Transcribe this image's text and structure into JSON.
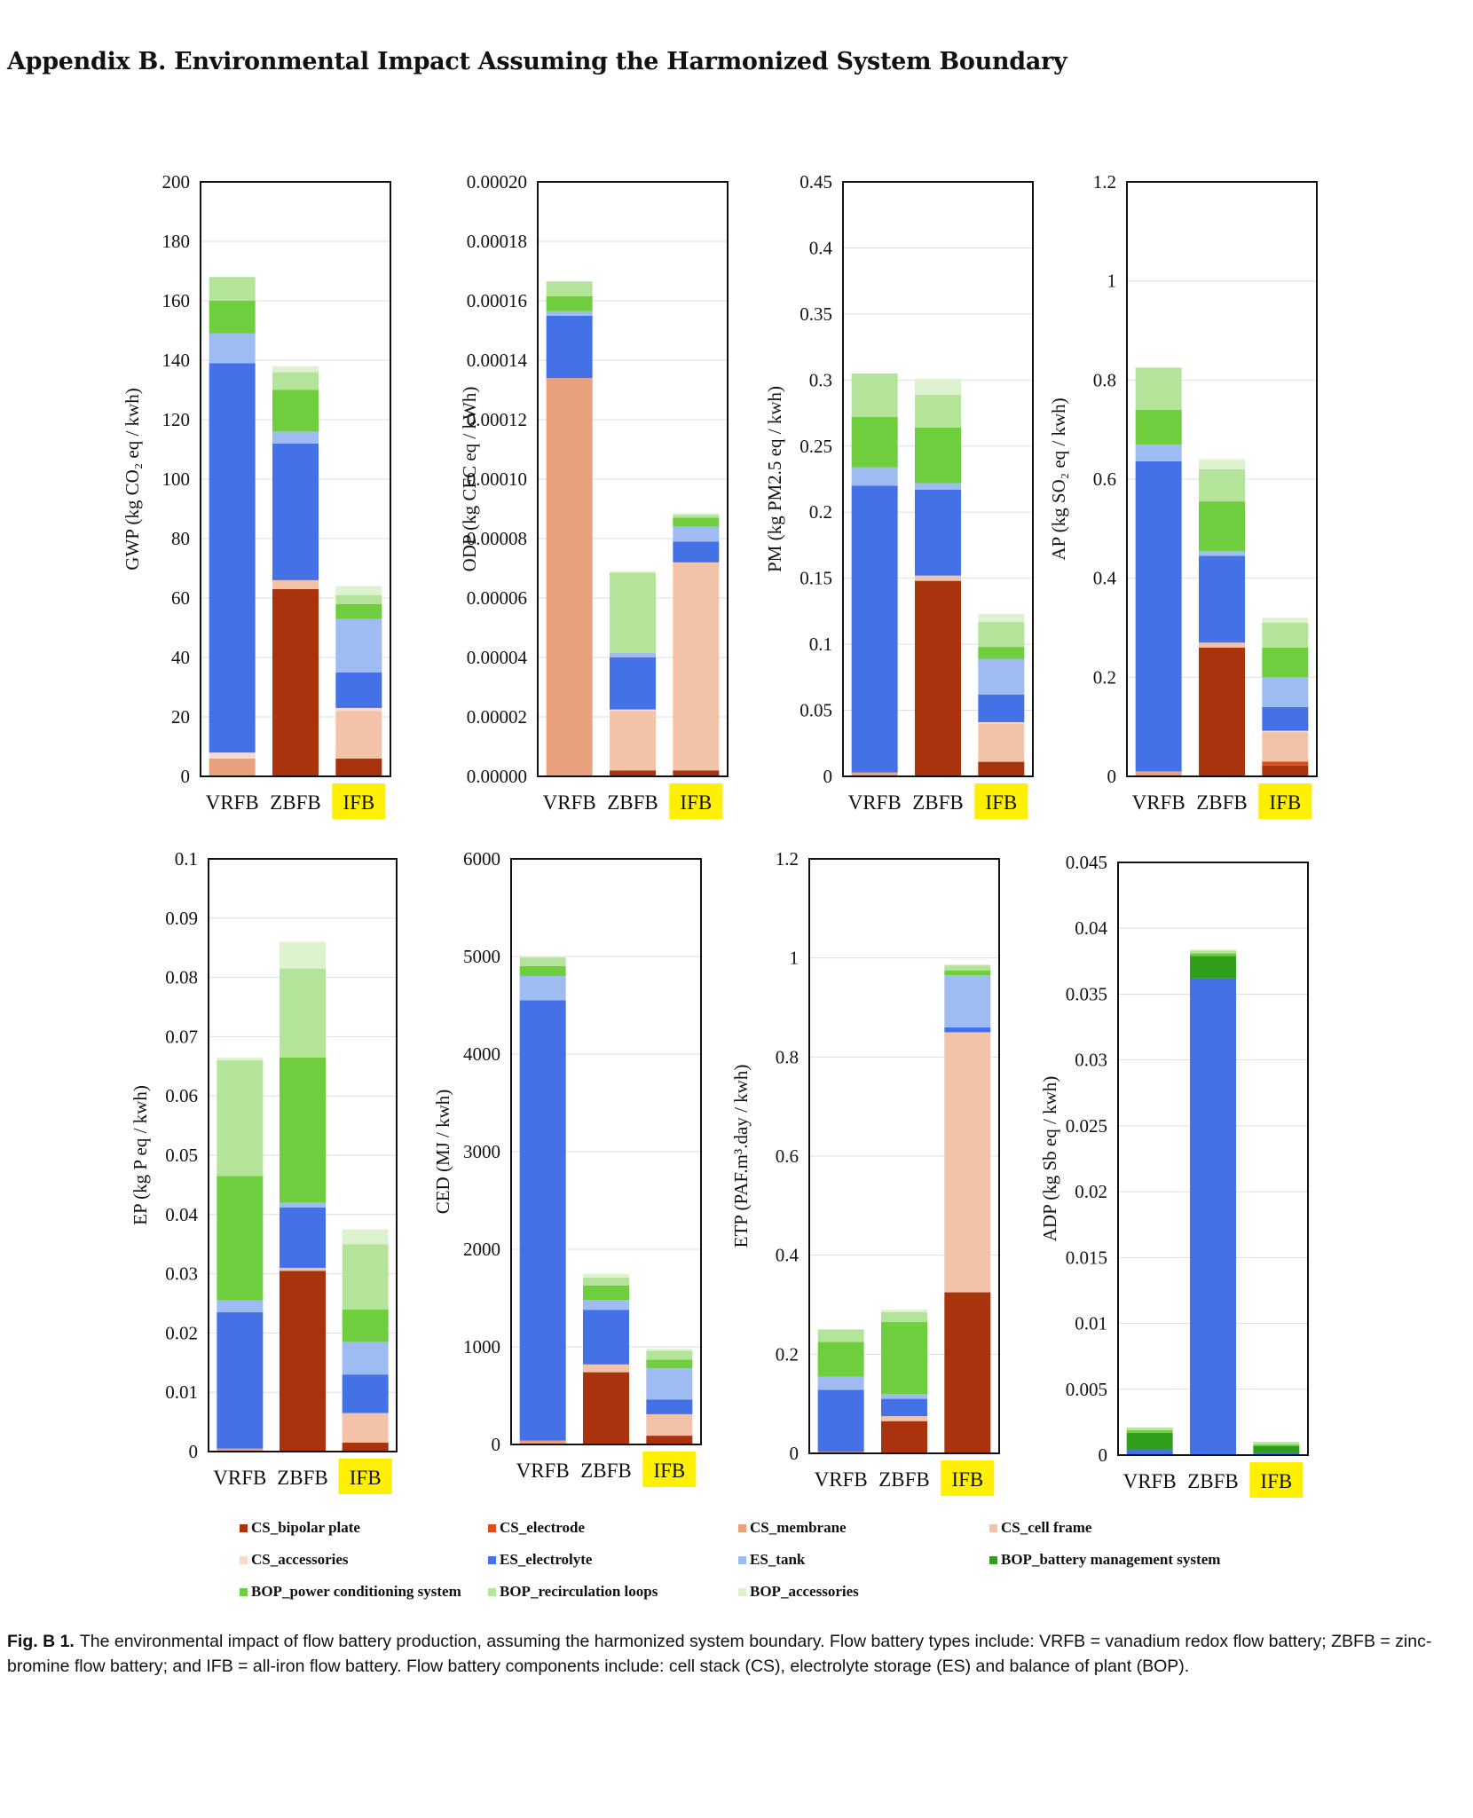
{
  "page": {
    "title": "Appendix B.  Environmental Impact Assuming the Harmonized System Boundary",
    "caption_label": "Fig. B 1.",
    "caption_text": "The environmental impact of flow battery production, assuming the harmonized system boundary. Flow battery types include: VRFB = vanadium redox flow battery; ZBFB = zinc-bromine flow battery; and IFB = all-iron flow battery. Flow battery components include: cell stack (CS), electrolyte storage (ES) and balance of plant (BOP)."
  },
  "legend": [
    {
      "name": "CS_bipolar plate",
      "color": "#a8330d"
    },
    {
      "name": "CS_electrode",
      "color": "#d8501c"
    },
    {
      "name": "CS_membrane",
      "color": "#e9a07c"
    },
    {
      "name": "CS_cell frame",
      "color": "#f2c3a8"
    },
    {
      "name": "CS_accessories",
      "color": "#f7d9cd"
    },
    {
      "name": "ES_electrolyte",
      "color": "#4472e6"
    },
    {
      "name": "ES_tank",
      "color": "#9ebcf2"
    },
    {
      "name": "BOP_battery management system",
      "color": "#2f9e1a"
    },
    {
      "name": "BOP_power conditioning system",
      "color": "#6fce3e"
    },
    {
      "name": "BOP_recirculation loops",
      "color": "#b4e49a"
    },
    {
      "name": "BOP_accessories",
      "color": "#ddf2cf"
    }
  ],
  "highlight_color": "#ffef00",
  "chart_data": [
    {
      "type": "bar",
      "stacked": true,
      "ylabel": "GWP (kg CO₂ eq / kwh)",
      "ylim": [
        0,
        200
      ],
      "ytick_step": 20,
      "yticks": [
        "0",
        "20",
        "40",
        "60",
        "80",
        "100",
        "120",
        "140",
        "160",
        "180",
        "200"
      ],
      "categories": [
        "VRFB",
        "ZBFB",
        "IFB"
      ],
      "highlight_category": "IFB",
      "series": [
        {
          "name": "CS_bipolar plate",
          "values": [
            0,
            63,
            6
          ]
        },
        {
          "name": "CS_electrode",
          "values": [
            0,
            0,
            0
          ]
        },
        {
          "name": "CS_membrane",
          "values": [
            6,
            0,
            0
          ]
        },
        {
          "name": "CS_cell frame",
          "values": [
            0,
            3,
            16
          ]
        },
        {
          "name": "CS_accessories",
          "values": [
            2,
            0,
            1
          ]
        },
        {
          "name": "ES_electrolyte",
          "values": [
            131,
            46,
            12
          ]
        },
        {
          "name": "ES_tank",
          "values": [
            10,
            4,
            18
          ]
        },
        {
          "name": "BOP_battery management system",
          "values": [
            0,
            0,
            0
          ]
        },
        {
          "name": "BOP_power conditioning system",
          "values": [
            11,
            14,
            5
          ]
        },
        {
          "name": "BOP_recirculation loops",
          "values": [
            8,
            6,
            3
          ]
        },
        {
          "name": "BOP_accessories",
          "values": [
            0,
            2,
            3
          ]
        }
      ]
    },
    {
      "type": "bar",
      "stacked": true,
      "ylabel": "ODP (kg CFC eq / kWh)",
      "ylim": [
        0,
        0.0002
      ],
      "ytick_step": 2e-05,
      "yticks": [
        "0.00000",
        "0.00002",
        "0.00004",
        "0.00006",
        "0.00008",
        "0.00010",
        "0.00012",
        "0.00014",
        "0.00016",
        "0.00018",
        "0.00020"
      ],
      "categories": [
        "VRFB",
        "ZBFB",
        "IFB"
      ],
      "highlight_category": "IFB",
      "series": [
        {
          "name": "CS_bipolar plate",
          "values": [
            0,
            2e-06,
            2e-06
          ]
        },
        {
          "name": "CS_electrode",
          "values": [
            0,
            0,
            0
          ]
        },
        {
          "name": "CS_membrane",
          "values": [
            0.000134,
            0,
            0
          ]
        },
        {
          "name": "CS_cell frame",
          "values": [
            0,
            2e-05,
            7e-05
          ]
        },
        {
          "name": "CS_accessories",
          "values": [
            0,
            5e-07,
            0
          ]
        },
        {
          "name": "ES_electrolyte",
          "values": [
            2.1e-05,
            1.75e-05,
            7e-06
          ]
        },
        {
          "name": "ES_tank",
          "values": [
            1.5e-06,
            1.5e-06,
            5e-06
          ]
        },
        {
          "name": "BOP_battery management system",
          "values": [
            0,
            0,
            0
          ]
        },
        {
          "name": "BOP_power conditioning system",
          "values": [
            5e-06,
            0,
            3e-06
          ]
        },
        {
          "name": "BOP_recirculation loops",
          "values": [
            5e-06,
            2.7e-05,
            1e-06
          ]
        },
        {
          "name": "BOP_accessories",
          "values": [
            0,
            5e-07,
            5e-07
          ]
        }
      ]
    },
    {
      "type": "bar",
      "stacked": true,
      "ylabel": "PM (kg PM2.5 eq / kwh)",
      "ylim": [
        0,
        0.45
      ],
      "ytick_step": 0.05,
      "yticks": [
        "0",
        "0.05",
        "0.1",
        "0.15",
        "0.2",
        "0.25",
        "0.3",
        "0.35",
        "0.4",
        "0.45"
      ],
      "categories": [
        "VRFB",
        "ZBFB",
        "IFB"
      ],
      "highlight_category": "IFB",
      "series": [
        {
          "name": "CS_bipolar plate",
          "values": [
            0,
            0.148,
            0.011
          ]
        },
        {
          "name": "CS_electrode",
          "values": [
            0,
            0,
            0
          ]
        },
        {
          "name": "CS_membrane",
          "values": [
            0.003,
            0,
            0
          ]
        },
        {
          "name": "CS_cell frame",
          "values": [
            0,
            0.004,
            0.029
          ]
        },
        {
          "name": "CS_accessories",
          "values": [
            0,
            0,
            0.001
          ]
        },
        {
          "name": "ES_electrolyte",
          "values": [
            0.217,
            0.065,
            0.021
          ]
        },
        {
          "name": "ES_tank",
          "values": [
            0.014,
            0.005,
            0.027
          ]
        },
        {
          "name": "BOP_battery management system",
          "values": [
            0,
            0,
            0
          ]
        },
        {
          "name": "BOP_power conditioning system",
          "values": [
            0.038,
            0.042,
            0.009
          ]
        },
        {
          "name": "BOP_recirculation loops",
          "values": [
            0.033,
            0.025,
            0.019
          ]
        },
        {
          "name": "BOP_accessories",
          "values": [
            0,
            0.012,
            0.006
          ]
        }
      ]
    },
    {
      "type": "bar",
      "stacked": true,
      "ylabel": "AP (kg SO₂ eq / kwh)",
      "ylim": [
        0,
        1.2
      ],
      "ytick_step": 0.2,
      "yticks": [
        "0",
        "0.2",
        "0.4",
        "0.6",
        "0.8",
        "1",
        "1.2"
      ],
      "categories": [
        "VRFB",
        "ZBFB",
        "IFB"
      ],
      "highlight_category": "IFB",
      "series": [
        {
          "name": "CS_bipolar plate",
          "values": [
            0,
            0.26,
            0.022
          ]
        },
        {
          "name": "CS_electrode",
          "values": [
            0,
            0,
            0.008
          ]
        },
        {
          "name": "CS_membrane",
          "values": [
            0.01,
            0,
            0
          ]
        },
        {
          "name": "CS_cell frame",
          "values": [
            0,
            0.01,
            0.06
          ]
        },
        {
          "name": "CS_accessories",
          "values": [
            0,
            0,
            0.002
          ]
        },
        {
          "name": "ES_electrolyte",
          "values": [
            0.626,
            0.175,
            0.048
          ]
        },
        {
          "name": "ES_tank",
          "values": [
            0.034,
            0.01,
            0.06
          ]
        },
        {
          "name": "BOP_battery management system",
          "values": [
            0,
            0,
            0
          ]
        },
        {
          "name": "BOP_power conditioning system",
          "values": [
            0.07,
            0.1,
            0.06
          ]
        },
        {
          "name": "BOP_recirculation loops",
          "values": [
            0.085,
            0.065,
            0.05
          ]
        },
        {
          "name": "BOP_accessories",
          "values": [
            0,
            0.02,
            0.01
          ]
        }
      ]
    },
    {
      "type": "bar",
      "stacked": true,
      "ylabel": "EP (kg P eq / kwh)",
      "ylim": [
        0,
        0.1
      ],
      "ytick_step": 0.01,
      "yticks": [
        "0",
        "0.01",
        "0.02",
        "0.03",
        "0.04",
        "0.05",
        "0.06",
        "0.07",
        "0.08",
        "0.09",
        "0.1"
      ],
      "categories": [
        "VRFB",
        "ZBFB",
        "IFB"
      ],
      "highlight_category": "IFB",
      "series": [
        {
          "name": "CS_bipolar plate",
          "values": [
            0,
            0.0305,
            0.0015
          ]
        },
        {
          "name": "CS_electrode",
          "values": [
            0,
            0,
            0
          ]
        },
        {
          "name": "CS_membrane",
          "values": [
            0.0005,
            0,
            0
          ]
        },
        {
          "name": "CS_cell frame",
          "values": [
            0,
            0.0005,
            0.005
          ]
        },
        {
          "name": "CS_accessories",
          "values": [
            0,
            0,
            0
          ]
        },
        {
          "name": "ES_electrolyte",
          "values": [
            0.023,
            0.0102,
            0.0065
          ]
        },
        {
          "name": "ES_tank",
          "values": [
            0.002,
            0.0008,
            0.0055
          ]
        },
        {
          "name": "BOP_battery management system",
          "values": [
            0,
            0,
            0
          ]
        },
        {
          "name": "BOP_power conditioning system",
          "values": [
            0.021,
            0.0245,
            0.0055
          ]
        },
        {
          "name": "BOP_recirculation loops",
          "values": [
            0.0195,
            0.015,
            0.011
          ]
        },
        {
          "name": "BOP_accessories",
          "values": [
            0.0005,
            0.0045,
            0.0025
          ]
        }
      ]
    },
    {
      "type": "bar",
      "stacked": true,
      "ylabel": "CED (MJ / kwh)",
      "ylim": [
        0,
        6000
      ],
      "ytick_step": 1000,
      "yticks": [
        "0",
        "1000",
        "2000",
        "3000",
        "4000",
        "5000",
        "6000"
      ],
      "categories": [
        "VRFB",
        "ZBFB",
        "IFB"
      ],
      "highlight_category": "IFB",
      "series": [
        {
          "name": "CS_bipolar plate",
          "values": [
            0,
            740,
            90
          ]
        },
        {
          "name": "CS_electrode",
          "values": [
            0,
            0,
            0
          ]
        },
        {
          "name": "CS_membrane",
          "values": [
            40,
            0,
            0
          ]
        },
        {
          "name": "CS_cell frame",
          "values": [
            0,
            80,
            220
          ]
        },
        {
          "name": "CS_accessories",
          "values": [
            0,
            0,
            0
          ]
        },
        {
          "name": "ES_electrolyte",
          "values": [
            4510,
            560,
            150
          ]
        },
        {
          "name": "ES_tank",
          "values": [
            250,
            100,
            320
          ]
        },
        {
          "name": "BOP_battery management system",
          "values": [
            0,
            0,
            0
          ]
        },
        {
          "name": "BOP_power conditioning system",
          "values": [
            100,
            150,
            90
          ]
        },
        {
          "name": "BOP_recirculation loops",
          "values": [
            90,
            80,
            90
          ]
        },
        {
          "name": "BOP_accessories",
          "values": [
            10,
            40,
            20
          ]
        }
      ]
    },
    {
      "type": "bar",
      "stacked": true,
      "ylabel": "ETP (PAF.m³.day / kwh)",
      "ylim": [
        0,
        1.2
      ],
      "ytick_step": 0.2,
      "yticks": [
        "0",
        "0.2",
        "0.4",
        "0.6",
        "0.8",
        "1",
        "1.2"
      ],
      "categories": [
        "VRFB",
        "ZBFB",
        "IFB"
      ],
      "highlight_category": "IFB",
      "series": [
        {
          "name": "CS_bipolar plate",
          "values": [
            0,
            0.065,
            0.325
          ]
        },
        {
          "name": "CS_electrode",
          "values": [
            0,
            0,
            0
          ]
        },
        {
          "name": "CS_membrane",
          "values": [
            0.003,
            0,
            0
          ]
        },
        {
          "name": "CS_cell frame",
          "values": [
            0,
            0.01,
            0.525
          ]
        },
        {
          "name": "CS_accessories",
          "values": [
            0,
            0,
            0
          ]
        },
        {
          "name": "ES_electrolyte",
          "values": [
            0.125,
            0.035,
            0.01
          ]
        },
        {
          "name": "ES_tank",
          "values": [
            0.027,
            0.01,
            0.105
          ]
        },
        {
          "name": "BOP_battery management system",
          "values": [
            0,
            0,
            0
          ]
        },
        {
          "name": "BOP_power conditioning system",
          "values": [
            0.07,
            0.145,
            0.01
          ]
        },
        {
          "name": "BOP_recirculation loops",
          "values": [
            0.025,
            0.02,
            0.01
          ]
        },
        {
          "name": "BOP_accessories",
          "values": [
            0,
            0.005,
            0.002
          ]
        }
      ]
    },
    {
      "type": "bar",
      "stacked": true,
      "ylabel": "ADP (kg Sb eq / kwh)",
      "ylim": [
        0,
        0.045
      ],
      "ytick_step": 0.005,
      "yticks": [
        "0",
        "0.005",
        "0.01",
        "0.015",
        "0.02",
        "0.025",
        "0.03",
        "0.035",
        "0.04",
        "0.045"
      ],
      "categories": [
        "VRFB",
        "ZBFB",
        "IFB"
      ],
      "highlight_category": "IFB",
      "series": [
        {
          "name": "CS_bipolar plate",
          "values": [
            0,
            0,
            0
          ]
        },
        {
          "name": "CS_electrode",
          "values": [
            0,
            0,
            0
          ]
        },
        {
          "name": "CS_membrane",
          "values": [
            0,
            0,
            0
          ]
        },
        {
          "name": "CS_cell frame",
          "values": [
            0,
            0,
            0
          ]
        },
        {
          "name": "CS_accessories",
          "values": [
            0,
            0,
            0
          ]
        },
        {
          "name": "ES_electrolyte",
          "values": [
            0.0004,
            0.0362,
            0.0002
          ]
        },
        {
          "name": "ES_tank",
          "values": [
            0,
            0,
            0
          ]
        },
        {
          "name": "BOP_battery management system",
          "values": [
            0.0013,
            0.0017,
            0.0005
          ]
        },
        {
          "name": "BOP_power conditioning system",
          "values": [
            0.0002,
            0.0002,
            0.0001
          ]
        },
        {
          "name": "BOP_recirculation loops",
          "values": [
            0.0002,
            0.0002,
            0.0002
          ]
        },
        {
          "name": "BOP_accessories",
          "values": [
            0,
            0.0001,
            0
          ]
        }
      ]
    }
  ]
}
